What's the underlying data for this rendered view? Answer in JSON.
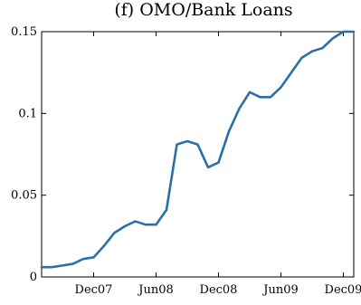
{
  "chart_data": {
    "type": "line",
    "title": "(f) OMO/Bank Loans",
    "xlabel": "",
    "ylabel": "",
    "x_tick_labels": [
      "Dec07",
      "Jun08",
      "Dec08",
      "Jun09",
      "Dec09"
    ],
    "x_tick_dates": [
      "2007-12",
      "2008-06",
      "2008-12",
      "2009-06",
      "2009-12"
    ],
    "xlim": [
      "2007-07",
      "2010-01"
    ],
    "ylim": [
      0,
      0.15
    ],
    "y_ticks": [
      0,
      0.05,
      0.1,
      0.15
    ],
    "y_tick_labels": [
      "0",
      "0.05",
      "0.1",
      "0.15"
    ],
    "grid": false,
    "series": [
      {
        "color": "#2a6fa8",
        "x": [
          "2007-07",
          "2007-08",
          "2007-09",
          "2007-10",
          "2007-11",
          "2007-12",
          "2008-01",
          "2008-02",
          "2008-03",
          "2008-04",
          "2008-05",
          "2008-06",
          "2008-07",
          "2008-08",
          "2008-09",
          "2008-10",
          "2008-11",
          "2008-12",
          "2009-01",
          "2009-02",
          "2009-03",
          "2009-04",
          "2009-05",
          "2009-06",
          "2009-07",
          "2009-08",
          "2009-09",
          "2009-10",
          "2009-11",
          "2009-12",
          "2010-01"
        ],
        "y": [
          0.006,
          0.006,
          0.007,
          0.008,
          0.011,
          0.012,
          0.019,
          0.027,
          0.031,
          0.034,
          0.032,
          0.032,
          0.041,
          0.081,
          0.083,
          0.081,
          0.067,
          0.07,
          0.089,
          0.103,
          0.113,
          0.11,
          0.11,
          0.116,
          0.125,
          0.134,
          0.138,
          0.14,
          0.146,
          0.15,
          0.15
        ]
      }
    ]
  }
}
